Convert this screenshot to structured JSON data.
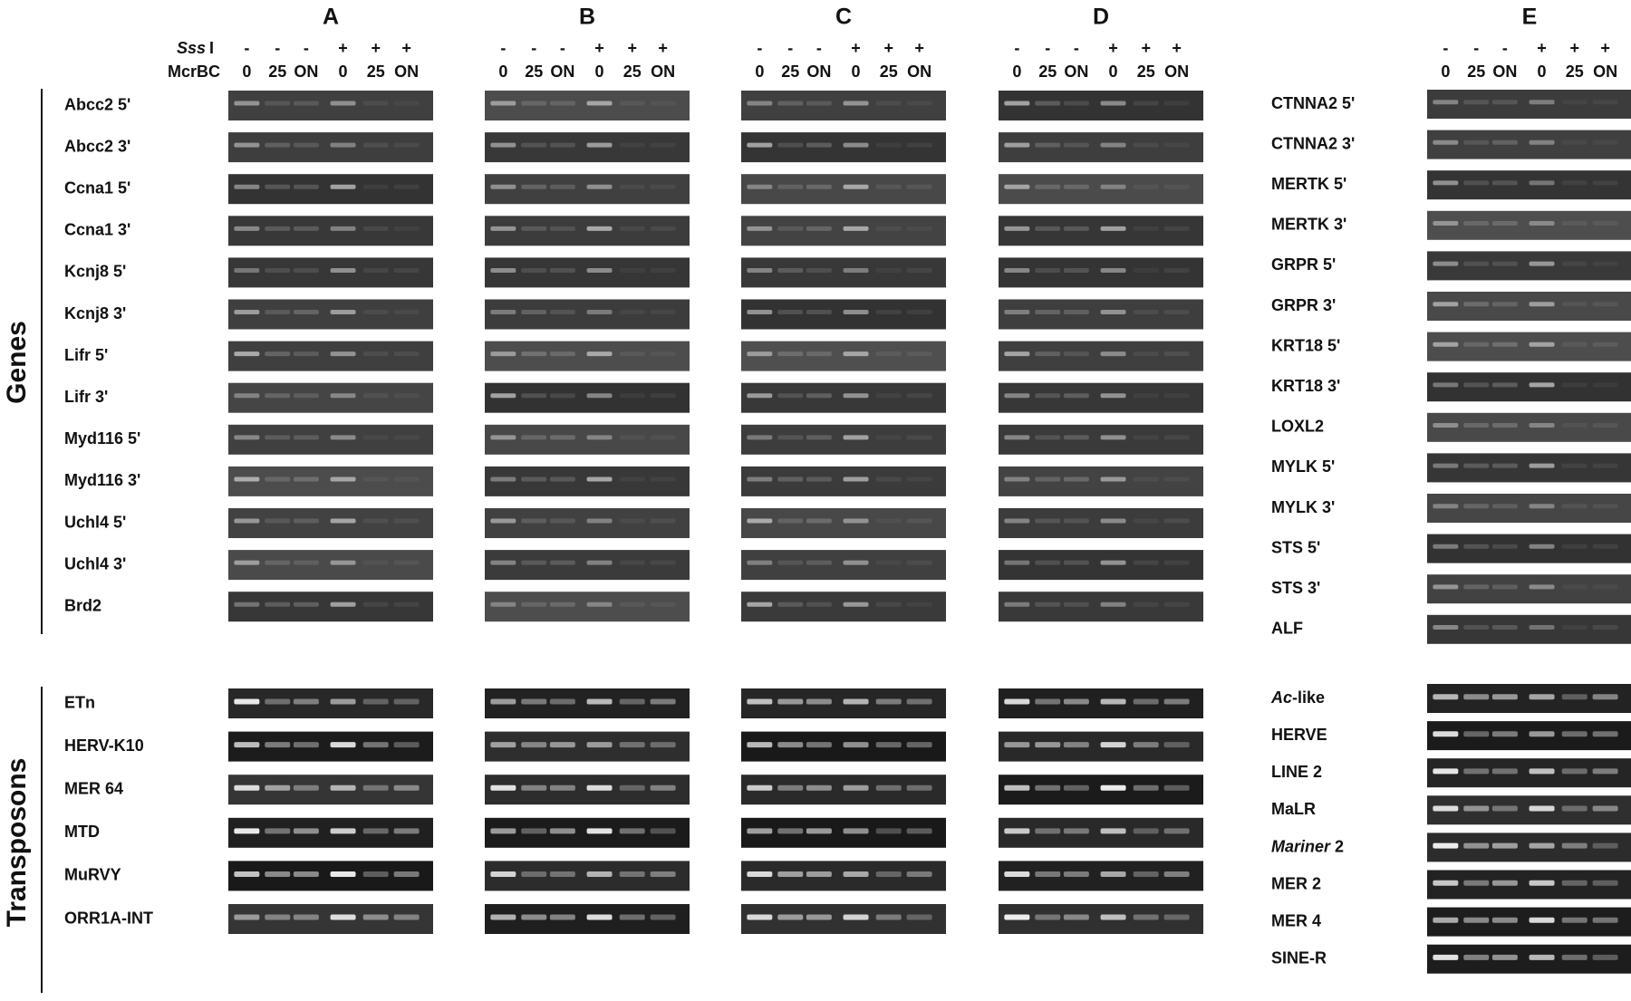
{
  "panels": [
    "A",
    "B",
    "C",
    "D",
    "E"
  ],
  "treatments": {
    "sss": {
      "label": "Sss",
      "suffix": "I",
      "values": [
        "-",
        "-",
        "-",
        "+",
        "+",
        "+"
      ]
    },
    "mcrbc": {
      "label": "McrBC",
      "values": [
        "0",
        "25",
        "ON",
        "0",
        "25",
        "ON"
      ]
    }
  },
  "groups": {
    "genes": {
      "label": "Genes",
      "rows": [
        "Abcc2 5'",
        "Abcc2 3'",
        "Ccna1 5'",
        "Ccna1 3'",
        "Kcnj8 5'",
        "Kcnj8 3'",
        "Lifr 5'",
        "Lifr 3'",
        "Myd116 5'",
        "Myd116 3'",
        "Uchl4 5'",
        "Uchl4 3'",
        "Brd2"
      ]
    },
    "transposons": {
      "label": "Transposons",
      "rows": [
        "ETn",
        "HERV-K10",
        "MER 64",
        "MTD",
        "MuRVY",
        "ORR1A-INT"
      ]
    }
  },
  "panel_e": {
    "genes": [
      "CTNNA2 5'",
      "CTNNA2 3'",
      "MERTK 5'",
      "MERTK 3'",
      "GRPR 5'",
      "GRPR 3'",
      "KRT18 5'",
      "KRT18 3'",
      "LOXL2",
      "MYLK 5'",
      "MYLK 3'",
      "STS 5'",
      "STS 3'",
      "ALF"
    ],
    "transposons": [
      {
        "italic": "Ac",
        "rest": "-like"
      },
      "HERVE",
      "LINE 2",
      "MaLR",
      {
        "italic": "Mariner",
        "rest": " 2"
      },
      "MER 2",
      "MER 4",
      "SINE-R"
    ]
  }
}
